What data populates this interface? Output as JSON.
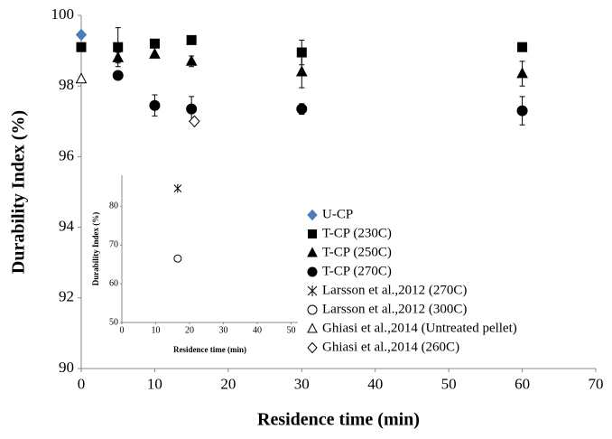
{
  "chart_data": [
    {
      "type": "scatter",
      "x_label": "Residence time (min)",
      "y_label": "Durability Index (%)",
      "xlim": [
        0,
        70
      ],
      "xticks": [
        0,
        10,
        20,
        30,
        40,
        50,
        60,
        70
      ],
      "ylim": [
        90,
        100
      ],
      "yticks": [
        90,
        92,
        94,
        96,
        98,
        100
      ],
      "series": [
        {
          "name": "U-CP",
          "color": "#4a7ebb",
          "marker": "diamond-filled",
          "x": [
            0
          ],
          "values": [
            99.45
          ]
        },
        {
          "name": "T-CP (230C)",
          "color": "#000000",
          "marker": "square",
          "x": [
            0,
            5,
            10,
            15,
            30,
            60
          ],
          "values": [
            99.1,
            99.1,
            99.2,
            99.3,
            98.95,
            99.1
          ],
          "errors": [
            null,
            0.55,
            null,
            0.1,
            0.35,
            null
          ]
        },
        {
          "name": "T-CP (250C)",
          "color": "#000000",
          "marker": "triangle",
          "x": [
            5,
            10,
            15,
            30,
            60
          ],
          "values": [
            98.8,
            98.9,
            98.7,
            98.4,
            98.35
          ],
          "errors": [
            0.15,
            null,
            0.15,
            0.45,
            0.35
          ]
        },
        {
          "name": "T-CP (270C)",
          "color": "#000000",
          "marker": "circle",
          "x": [
            5,
            10,
            15,
            30,
            60
          ],
          "values": [
            98.3,
            97.45,
            97.35,
            97.35,
            97.3
          ],
          "errors": [
            0.1,
            0.3,
            0.35,
            0.15,
            0.4
          ]
        },
        {
          "name": "Ghiasi et al.,2014 (Untreated pellet)",
          "color": "#000000",
          "marker": "triangle-open",
          "x": [
            0
          ],
          "values": [
            98.2
          ]
        },
        {
          "name": "Ghiasi et al.,2014 (260C)",
          "color": "#000000",
          "marker": "diamond-open",
          "x": [
            15.4
          ],
          "values": [
            97.0
          ]
        }
      ]
    },
    {
      "type": "scatter",
      "x_label": "Residence time (min)",
      "y_label": "Durability Index (%)",
      "xlim": [
        0,
        52
      ],
      "xticks": [
        0,
        10,
        20,
        30,
        40,
        50
      ],
      "ylim": [
        50,
        88
      ],
      "yticks": [
        50,
        60,
        70,
        80
      ],
      "series": [
        {
          "name": "Larsson et al.,2012 (270C)",
          "color": "#000000",
          "marker": "asterisk",
          "x": [
            16.5
          ],
          "values": [
            84.6
          ]
        },
        {
          "name": "Larsson et al.,2012 (300C)",
          "color": "#000000",
          "marker": "circle-open",
          "x": [
            16.5
          ],
          "values": [
            66.5
          ]
        }
      ]
    }
  ]
}
